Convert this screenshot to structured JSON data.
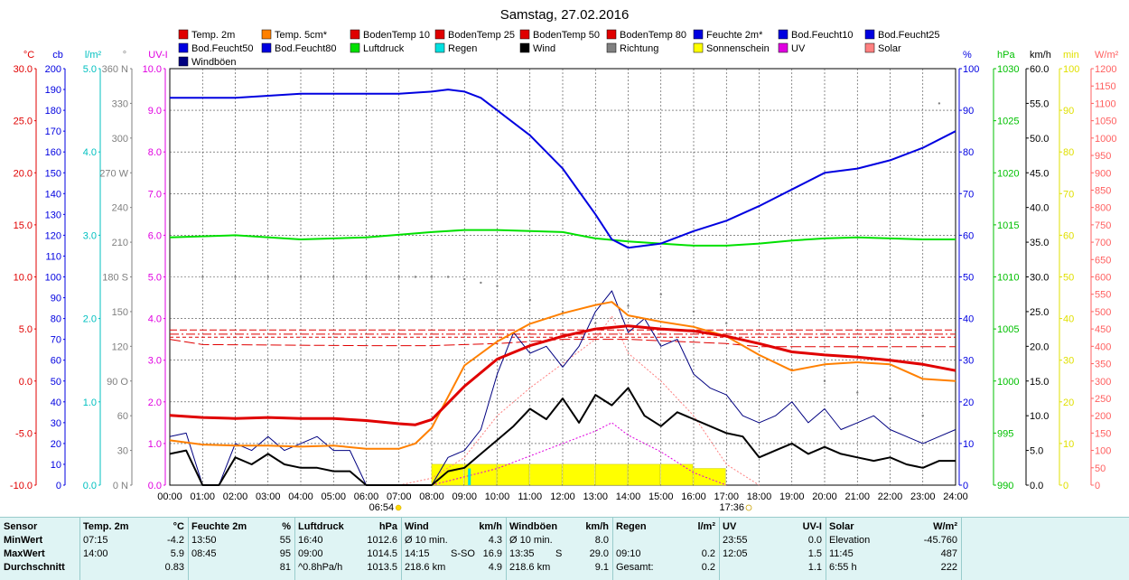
{
  "title": "Samstag, 27.02.2016",
  "legend": [
    {
      "label": "Temp. 2m",
      "color": "#e00000"
    },
    {
      "label": "Temp. 5cm*",
      "color": "#ff8000"
    },
    {
      "label": "BodenTemp 10",
      "color": "#e00000"
    },
    {
      "label": "BodenTemp 25",
      "color": "#e00000"
    },
    {
      "label": "BodenTemp 50",
      "color": "#e00000"
    },
    {
      "label": "BodenTemp 80",
      "color": "#e00000"
    },
    {
      "label": "Feuchte 2m*",
      "color": "#0000e0"
    },
    {
      "label": "Bod.Feucht10",
      "color": "#0000e0"
    },
    {
      "label": "Bod.Feucht25",
      "color": "#0000e0"
    },
    {
      "label": "Bod.Feucht50",
      "color": "#0000e0"
    },
    {
      "label": "Bod.Feucht80",
      "color": "#0000e0"
    },
    {
      "label": "Luftdruck",
      "color": "#00e000"
    },
    {
      "label": "Regen",
      "color": "#00e0e0"
    },
    {
      "label": "Wind",
      "color": "#000000"
    },
    {
      "label": "Richtung",
      "color": "#808080"
    },
    {
      "label": "Sonnenschein",
      "color": "#ffff00"
    },
    {
      "label": "UV",
      "color": "#e000e0"
    },
    {
      "label": "Solar",
      "color": "#ff8080"
    },
    {
      "label": "Windböen",
      "color": "#000080"
    }
  ],
  "axes_left": [
    {
      "unit": "°C",
      "color": "#e00000",
      "ticks": [
        "30.0",
        "25.0",
        "20.0",
        "15.0",
        "10.0",
        "5.0",
        "0.0",
        "-5.0",
        "-10.0"
      ],
      "min": -10,
      "max": 30
    },
    {
      "unit": "cb",
      "color": "#0000e0",
      "ticks": [
        "200",
        "190",
        "180",
        "170",
        "160",
        "150",
        "140",
        "130",
        "120",
        "110",
        "100",
        "90",
        "80",
        "70",
        "60",
        "50",
        "40",
        "30",
        "20",
        "10",
        "0"
      ],
      "min": 0,
      "max": 200
    },
    {
      "unit": "l/m²",
      "color": "#00c0c0",
      "ticks": [
        "5.0",
        "4.0",
        "3.0",
        "2.0",
        "1.0",
        "0.0"
      ],
      "min": 0,
      "max": 5
    },
    {
      "unit": "°",
      "color": "#808080",
      "ticks": [
        "360 N",
        "330",
        "300",
        "270 W",
        "240",
        "210",
        "180 S",
        "150",
        "120",
        "90 O",
        "60",
        "30",
        "0 N"
      ],
      "min": 0,
      "max": 360
    },
    {
      "unit": "UV-I",
      "color": "#e000e0",
      "ticks": [
        "10.0",
        "9.0",
        "8.0",
        "7.0",
        "6.0",
        "5.0",
        "4.0",
        "3.0",
        "2.0",
        "1.0",
        "0.0"
      ],
      "min": 0,
      "max": 10
    }
  ],
  "axes_right": [
    {
      "unit": "%",
      "color": "#0000e0",
      "ticks": [
        "100",
        "90",
        "80",
        "70",
        "60",
        "50",
        "40",
        "30",
        "20",
        "10",
        "0"
      ],
      "min": 0,
      "max": 100
    },
    {
      "unit": "hPa",
      "color": "#00c000",
      "ticks": [
        "1030",
        "1025",
        "1020",
        "1015",
        "1010",
        "1005",
        "1000",
        "995",
        "990"
      ],
      "min": 990,
      "max": 1030
    },
    {
      "unit": "km/h",
      "color": "#000000",
      "ticks": [
        "60.0",
        "55.0",
        "50.0",
        "45.0",
        "40.0",
        "35.0",
        "30.0",
        "25.0",
        "20.0",
        "15.0",
        "10.0",
        "5.0",
        "0.0"
      ],
      "min": 0,
      "max": 60
    },
    {
      "unit": "min",
      "color": "#e0e000",
      "ticks": [
        "100",
        "90",
        "80",
        "70",
        "60",
        "50",
        "40",
        "30",
        "20",
        "10",
        "0"
      ],
      "min": 0,
      "max": 100
    },
    {
      "unit": "W/m²",
      "color": "#ff6060",
      "ticks": [
        "1200",
        "1150",
        "1100",
        "1050",
        "1000",
        "950",
        "900",
        "850",
        "800",
        "750",
        "700",
        "650",
        "600",
        "550",
        "500",
        "450",
        "400",
        "350",
        "300",
        "250",
        "200",
        "150",
        "100",
        "50",
        "0"
      ],
      "min": 0,
      "max": 1200
    }
  ],
  "chart_data": {
    "type": "line",
    "x_ticks": [
      "00:00",
      "01:00",
      "02:00",
      "03:00",
      "04:00",
      "05:00",
      "06:00",
      "07:00",
      "08:00",
      "09:00",
      "10:00",
      "11:00",
      "12:00",
      "13:00",
      "14:00",
      "15:00",
      "16:00",
      "17:00",
      "18:00",
      "19:00",
      "20:00",
      "21:00",
      "22:00",
      "23:00",
      "24:00"
    ],
    "sunrise": "06:54",
    "sunset": "17:36",
    "series": [
      {
        "name": "Temp. 2m",
        "axis": "°C",
        "color": "#e00000",
        "x": [
          0,
          1,
          2,
          3,
          4,
          5,
          6,
          7,
          7.5,
          8,
          9,
          10,
          11,
          12,
          13,
          14,
          15,
          16,
          17,
          18,
          19,
          20,
          21,
          22,
          23,
          24
        ],
        "y": [
          -3.3,
          -3.5,
          -3.6,
          -3.5,
          -3.6,
          -3.6,
          -3.8,
          -4.1,
          -4.2,
          -3.7,
          -0.5,
          2.1,
          3.4,
          4.3,
          5.0,
          5.3,
          5.0,
          4.8,
          4.3,
          3.6,
          2.8,
          2.5,
          2.3,
          2.0,
          1.6,
          1.0
        ]
      },
      {
        "name": "Temp. 5cm*",
        "axis": "°C",
        "color": "#ff8000",
        "x": [
          0,
          1,
          2,
          3,
          4,
          5,
          6,
          7,
          7.5,
          8,
          9,
          10,
          11,
          12,
          13,
          13.5,
          14,
          15,
          16,
          17,
          18,
          19,
          20,
          21,
          22,
          23,
          24
        ],
        "y": [
          -5.7,
          -6.1,
          -6.2,
          -6.2,
          -6.3,
          -6.2,
          -6.5,
          -6.5,
          -6.0,
          -4.5,
          1.5,
          3.8,
          5.5,
          6.5,
          7.3,
          7.6,
          6.3,
          5.7,
          5.2,
          4.3,
          2.5,
          1.0,
          1.6,
          1.8,
          1.6,
          0.2,
          0.0
        ]
      },
      {
        "name": "BodenTemp 10",
        "axis": "°C",
        "color": "#e00000",
        "x": [
          0,
          24
        ],
        "y": [
          4.9,
          4.9
        ]
      },
      {
        "name": "BodenTemp 25",
        "axis": "°C",
        "color": "#e00000",
        "x": [
          0,
          24
        ],
        "y": [
          4.5,
          4.5
        ]
      },
      {
        "name": "BodenTemp 50",
        "axis": "°C",
        "color": "#e00000",
        "x": [
          0,
          24
        ],
        "y": [
          4.2,
          4.2
        ]
      },
      {
        "name": "BodenTemp 80",
        "axis": "°C",
        "color": "#e00000",
        "x": [
          0,
          1,
          6,
          8,
          9,
          10,
          11,
          12,
          14,
          17,
          18,
          24
        ],
        "y": [
          4.0,
          3.5,
          3.4,
          3.4,
          3.5,
          3.6,
          3.8,
          4.0,
          4.0,
          3.6,
          3.3,
          3.3
        ]
      },
      {
        "name": "Feuchte 2m*",
        "axis": "%",
        "color": "#0000e0",
        "x": [
          0,
          1,
          2,
          3,
          4,
          5,
          6,
          7,
          8,
          8.5,
          9,
          9.5,
          10,
          11,
          12,
          13,
          13.5,
          14,
          15,
          16,
          17,
          18,
          19,
          20,
          21,
          22,
          23,
          24
        ],
        "y": [
          93,
          93,
          93,
          93.5,
          94,
          94,
          94,
          94,
          94.5,
          95,
          94.5,
          93,
          90,
          84,
          76,
          65,
          59,
          57,
          58,
          61,
          63.5,
          67,
          71,
          75,
          76,
          78,
          81,
          85
        ]
      },
      {
        "name": "Luftdruck",
        "axis": "hPa",
        "color": "#00e000",
        "x": [
          0,
          2,
          4,
          6,
          8,
          9,
          10,
          11,
          12,
          13,
          14,
          15,
          16,
          17,
          18,
          19,
          20,
          21,
          22,
          23,
          24
        ],
        "y": [
          1013.8,
          1014.0,
          1013.6,
          1013.8,
          1014.3,
          1014.5,
          1014.5,
          1014.4,
          1014.3,
          1013.7,
          1013.4,
          1013.2,
          1013.0,
          1013.0,
          1013.2,
          1013.5,
          1013.7,
          1013.8,
          1013.7,
          1013.6,
          1013.6
        ]
      },
      {
        "name": "Wind",
        "axis": "km/h",
        "color": "#000000",
        "x": [
          0,
          0.5,
          1,
          1.5,
          2,
          2.5,
          3,
          3.5,
          4,
          4.5,
          5,
          5.5,
          6,
          7,
          8,
          8.5,
          9,
          9.5,
          10,
          10.5,
          11,
          11.5,
          12,
          12.5,
          13,
          13.5,
          14,
          14.5,
          15,
          15.5,
          16,
          16.5,
          17,
          17.5,
          18,
          18.5,
          19,
          19.5,
          20,
          20.5,
          21,
          21.5,
          22,
          22.5,
          23,
          23.5,
          24
        ],
        "y": [
          4.5,
          5.0,
          0.0,
          0.0,
          4.0,
          3.0,
          4.5,
          3.0,
          2.5,
          2.5,
          2.0,
          2.0,
          0.0,
          0.0,
          0.0,
          2.0,
          2.5,
          4.5,
          6.5,
          8.5,
          11,
          9.5,
          12.5,
          9.0,
          13,
          11.5,
          14,
          10,
          8.5,
          10.5,
          9.5,
          8.5,
          7.5,
          7.0,
          4.0,
          5.0,
          6.0,
          4.5,
          5.5,
          4.5,
          4.0,
          3.5,
          4.0,
          3.0,
          2.5,
          3.5,
          3.5
        ]
      },
      {
        "name": "Windböen",
        "axis": "km/h",
        "color": "#000080",
        "x": [
          0,
          0.5,
          1,
          1.5,
          2,
          2.5,
          3,
          3.5,
          4,
          4.5,
          5,
          5.5,
          6,
          7,
          8,
          8.5,
          9,
          9.5,
          10,
          10.5,
          11,
          11.5,
          12,
          12.5,
          13,
          13.5,
          14,
          14.5,
          15,
          15.5,
          16,
          16.5,
          17,
          17.5,
          18,
          18.5,
          19,
          19.5,
          20,
          20.5,
          21,
          21.5,
          22,
          22.5,
          23,
          23.5,
          24
        ],
        "y": [
          7,
          7.5,
          0,
          0,
          6,
          5,
          7,
          5,
          6,
          7,
          5,
          5,
          0,
          0,
          0,
          4,
          5,
          8,
          16,
          22,
          19,
          20,
          17,
          20,
          25,
          28,
          22,
          24,
          20,
          21,
          16,
          14,
          13,
          10,
          9,
          10,
          12,
          9,
          11,
          8,
          9,
          10,
          8,
          7,
          6,
          7,
          8
        ]
      },
      {
        "name": "Richtung",
        "axis": "°",
        "color": "#808080",
        "x": [
          0,
          1,
          2,
          3,
          4,
          5,
          6,
          7,
          7.5,
          8,
          8.5,
          9,
          9.5,
          10,
          11,
          12,
          13,
          14,
          15,
          16,
          17,
          18,
          19,
          20,
          21,
          22,
          23,
          23.5
        ],
        "y": [
          180,
          180,
          180,
          180,
          180,
          180,
          180,
          180,
          180,
          180,
          180,
          178,
          175,
          172,
          160,
          150,
          140,
          155,
          165,
          150,
          140,
          110,
          100,
          90,
          80,
          75,
          60,
          330
        ]
      },
      {
        "name": "Sonnenschein",
        "axis": "min",
        "color": "#ffff00",
        "x": [
          8,
          9,
          10,
          11,
          12,
          13,
          14,
          15,
          16,
          17
        ],
        "y": [
          5,
          5,
          5,
          5,
          5,
          5,
          5,
          5,
          4,
          4
        ]
      },
      {
        "name": "Regen",
        "axis": "l/m²",
        "color": "#00e0e0",
        "x": [
          9.15
        ],
        "y": [
          0.2
        ]
      },
      {
        "name": "UV",
        "axis": "UV-I",
        "color": "#e000e0",
        "x": [
          8,
          9,
          10,
          11,
          12,
          13,
          13.5,
          14,
          15,
          16,
          17
        ],
        "y": [
          0.0,
          0.2,
          0.4,
          0.7,
          1.0,
          1.3,
          1.5,
          1.2,
          0.8,
          0.3,
          0.0
        ]
      },
      {
        "name": "Solar",
        "axis": "W/m²",
        "color": "#ff8080",
        "x": [
          7,
          8,
          9,
          10,
          11,
          12,
          13,
          13.5,
          14,
          15,
          16,
          17,
          18
        ],
        "y": [
          0,
          20,
          80,
          200,
          280,
          350,
          420,
          487,
          380,
          300,
          200,
          60,
          0
        ]
      }
    ]
  },
  "stats": {
    "row_labels": [
      "Sensor",
      "MinWert",
      "MaxWert",
      "Durchschnitt"
    ],
    "cols": [
      {
        "name": "Temp. 2m",
        "unit": "°C",
        "rows": [
          [
            "07:15",
            "",
            "-4.2"
          ],
          [
            "14:00",
            "",
            "5.9"
          ],
          [
            "",
            "",
            "0.83"
          ]
        ]
      },
      {
        "name": "Feuchte 2m",
        "unit": "%",
        "rows": [
          [
            "13:50",
            "",
            "55"
          ],
          [
            "08:45",
            "",
            "95"
          ],
          [
            "",
            "",
            "81"
          ]
        ]
      },
      {
        "name": "Luftdruck",
        "unit": "hPa",
        "rows": [
          [
            "16:40",
            "",
            "1012.6"
          ],
          [
            "09:00",
            "",
            "1014.5"
          ],
          [
            "^0.8hPa/h",
            "",
            "1013.5"
          ]
        ]
      },
      {
        "name": "Wind",
        "unit": "km/h",
        "rows": [
          [
            "Ø 10 min.",
            "",
            "4.3"
          ],
          [
            "14:15",
            "S-SO",
            "16.9"
          ],
          [
            "218.6 km",
            "",
            "4.9"
          ]
        ]
      },
      {
        "name": "Windböen",
        "unit": "km/h",
        "rows": [
          [
            "Ø 10 min.",
            "",
            "8.0"
          ],
          [
            "13:35",
            "S",
            "29.0"
          ],
          [
            "218.6 km",
            "",
            "9.1"
          ]
        ]
      },
      {
        "name": "Regen",
        "unit": "l/m²",
        "rows": [
          [
            "",
            "",
            ""
          ],
          [
            "09:10",
            "",
            "0.2"
          ],
          [
            "Gesamt:",
            "",
            "0.2"
          ]
        ]
      },
      {
        "name": "UV",
        "unit": "UV-I",
        "rows": [
          [
            "23:55",
            "",
            "0.0"
          ],
          [
            "12:05",
            "",
            "1.5"
          ],
          [
            "",
            "",
            "1.1"
          ]
        ]
      },
      {
        "name": "Solar",
        "unit": "W/m²",
        "rows": [
          [
            "Elevation",
            "",
            "-45.760"
          ],
          [
            "11:45",
            "",
            "487"
          ],
          [
            "6:55 h",
            "",
            "222"
          ]
        ]
      }
    ]
  }
}
